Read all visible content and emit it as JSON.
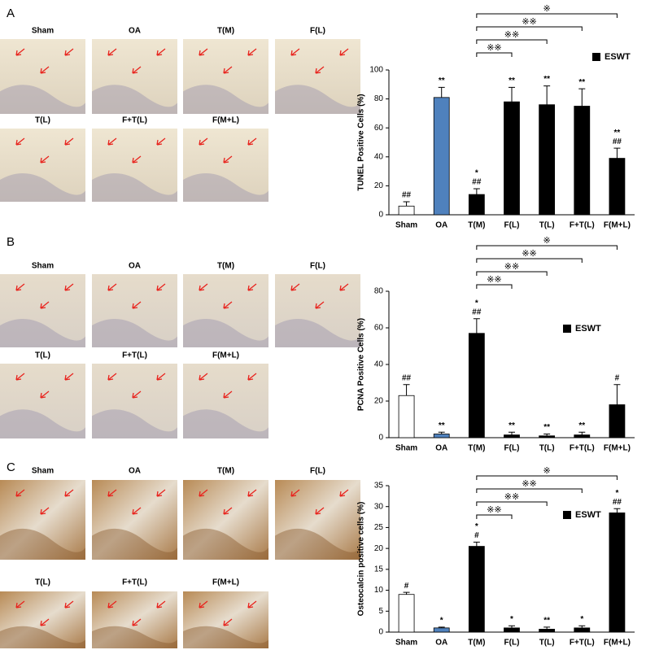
{
  "panels": [
    {
      "label": "A",
      "images": [
        "Sham",
        "OA",
        "T(M)",
        "F(L)",
        "T(L)",
        "F+T(L)",
        "F(M+L)"
      ]
    },
    {
      "label": "B",
      "images": [
        "Sham",
        "OA",
        "T(M)",
        "F(L)",
        "T(L)",
        "F+T(L)",
        "F(M+L)"
      ]
    },
    {
      "label": "C",
      "images": [
        "Sham",
        "OA",
        "T(M)",
        "F(L)",
        "T(L)",
        "F+T(L)",
        "F(M+L)"
      ]
    }
  ],
  "chart_data": [
    {
      "type": "bar",
      "y_label": "TUNEL Positive Cells  (%)",
      "categories": [
        "Sham",
        "OA",
        "T(M)",
        "F(L)",
        "T(L)",
        "F+T(L)",
        "F(M+L)"
      ],
      "values": [
        6,
        81,
        14,
        78,
        76,
        75,
        39
      ],
      "errors": [
        3,
        7,
        4,
        10,
        13,
        12,
        7
      ],
      "colors": [
        "#ffffff",
        "#4f81bd",
        "#000000",
        "#000000",
        "#000000",
        "#000000",
        "#000000"
      ],
      "annotations": [
        [
          "##"
        ],
        [
          "**"
        ],
        [
          "*",
          "##"
        ],
        [
          "**"
        ],
        [
          "**"
        ],
        [
          "**"
        ],
        [
          "**",
          "##"
        ]
      ],
      "comparisons": [
        {
          "from": "T(M)",
          "to": "F(M+L)",
          "label": "※"
        },
        {
          "from": "T(M)",
          "to": "F+T(L)",
          "label": "※※"
        },
        {
          "from": "T(M)",
          "to": "T(L)",
          "label": "※※"
        },
        {
          "from": "T(M)",
          "to": "F(L)",
          "label": "※※"
        }
      ],
      "legend_label": "ESWT",
      "legend_color": "#000000",
      "ylim": [
        0,
        100
      ],
      "yticks": [
        0,
        20,
        40,
        60,
        80,
        100
      ]
    },
    {
      "type": "bar",
      "y_label": "PCNA  Positive  Cells  (%)",
      "categories": [
        "Sham",
        "OA",
        "T(M)",
        "F(L)",
        "T(L)",
        "F+T(L)",
        "F(M+L)"
      ],
      "values": [
        23,
        2,
        57,
        1.5,
        1,
        1.5,
        18
      ],
      "errors": [
        6,
        1,
        8,
        1.5,
        1,
        1.5,
        11
      ],
      "colors": [
        "#ffffff",
        "#4f81bd",
        "#000000",
        "#000000",
        "#000000",
        "#000000",
        "#000000"
      ],
      "annotations": [
        [
          "##"
        ],
        [
          "**"
        ],
        [
          "*",
          "##"
        ],
        [
          "**"
        ],
        [
          "**"
        ],
        [
          "**"
        ],
        [
          "#"
        ]
      ],
      "comparisons": [
        {
          "from": "T(M)",
          "to": "F(M+L)",
          "label": "※"
        },
        {
          "from": "T(M)",
          "to": "F+T(L)",
          "label": "※※"
        },
        {
          "from": "T(M)",
          "to": "T(L)",
          "label": "※※"
        },
        {
          "from": "T(M)",
          "to": "F(L)",
          "label": "※※"
        }
      ],
      "legend_label": "ESWT",
      "legend_color": "#000000",
      "ylim": [
        0,
        80
      ],
      "yticks": [
        0,
        20,
        40,
        60,
        80
      ]
    },
    {
      "type": "bar",
      "y_label": "Osteocalcin positive cells (%)",
      "categories": [
        "Sham",
        "OA",
        "T(M)",
        "F(L)",
        "T(L)",
        "F+T(L)",
        "F(M+L)"
      ],
      "values": [
        9,
        1,
        20.5,
        1,
        0.7,
        1,
        28.5
      ],
      "errors": [
        0.5,
        0.2,
        1,
        0.5,
        0.5,
        0.5,
        1
      ],
      "colors": [
        "#ffffff",
        "#4f81bd",
        "#000000",
        "#000000",
        "#000000",
        "#000000",
        "#000000"
      ],
      "annotations": [
        [
          "#"
        ],
        [
          "*"
        ],
        [
          "*",
          "#"
        ],
        [
          "*"
        ],
        [
          "**"
        ],
        [
          "*"
        ],
        [
          "*",
          "##"
        ]
      ],
      "comparisons": [
        {
          "from": "T(M)",
          "to": "F(M+L)",
          "label": "※"
        },
        {
          "from": "T(M)",
          "to": "F+T(L)",
          "label": "※※"
        },
        {
          "from": "T(M)",
          "to": "T(L)",
          "label": "※※"
        },
        {
          "from": "T(M)",
          "to": "F(L)",
          "label": "※※"
        }
      ],
      "legend_label": "ESWT",
      "legend_color": "#000000",
      "ylim": [
        0,
        35
      ],
      "yticks": [
        0,
        5,
        10,
        15,
        20,
        25,
        30,
        35
      ]
    }
  ]
}
